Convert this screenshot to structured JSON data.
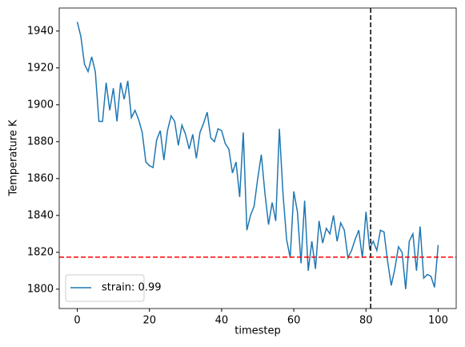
{
  "chart_data": {
    "type": "line",
    "xlabel": "timestep",
    "ylabel": "Temperature K",
    "x": [
      0,
      1,
      2,
      3,
      4,
      5,
      6,
      7,
      8,
      9,
      10,
      11,
      12,
      13,
      14,
      15,
      16,
      17,
      18,
      19,
      20,
      21,
      22,
      23,
      24,
      25,
      26,
      27,
      28,
      29,
      30,
      31,
      32,
      33,
      34,
      35,
      36,
      37,
      38,
      39,
      40,
      41,
      42,
      43,
      44,
      45,
      46,
      47,
      48,
      49,
      50,
      51,
      52,
      53,
      54,
      55,
      56,
      57,
      58,
      59,
      60,
      61,
      62,
      63,
      64,
      65,
      66,
      67,
      68,
      69,
      70,
      71,
      72,
      73,
      74,
      75,
      76,
      77,
      78,
      79,
      80,
      81,
      82,
      83,
      84,
      85,
      86,
      87,
      88,
      89,
      90,
      91,
      92,
      93,
      94,
      95,
      96,
      97,
      98,
      99,
      100
    ],
    "series": [
      {
        "name": "strain: 0.99",
        "color": "#1f77b4",
        "values": [
          1945,
          1937,
          1922,
          1918,
          1926,
          1918,
          1891,
          1891,
          1912,
          1897,
          1909,
          1891,
          1912,
          1903,
          1913,
          1893,
          1897,
          1892,
          1885,
          1869,
          1867,
          1866,
          1881,
          1886,
          1870,
          1886,
          1894,
          1891,
          1878,
          1889,
          1884,
          1876,
          1884,
          1871,
          1885,
          1890,
          1896,
          1882,
          1880,
          1887,
          1886,
          1879,
          1876,
          1863,
          1869,
          1850,
          1885,
          1832,
          1840,
          1845,
          1860,
          1873,
          1852,
          1835,
          1847,
          1837,
          1887,
          1852,
          1827,
          1817,
          1853,
          1842,
          1814,
          1848,
          1810,
          1826,
          1811,
          1837,
          1825,
          1833,
          1830,
          1840,
          1826,
          1836,
          1832,
          1817,
          1821,
          1827,
          1832,
          1817,
          1842,
          1822,
          1826,
          1821,
          1832,
          1831,
          1815,
          1802,
          1811,
          1823,
          1820,
          1800,
          1826,
          1830,
          1810,
          1834,
          1806,
          1808,
          1807,
          1801,
          1824
        ]
      }
    ],
    "reference_lines": [
      {
        "axis": "x",
        "value": 81.3,
        "color": "#000000"
      },
      {
        "axis": "y",
        "value": 1817.4,
        "color": "#ff0000"
      }
    ],
    "xlim": [
      -5,
      105
    ],
    "xticks": [
      0,
      20,
      40,
      60,
      80,
      100
    ],
    "ylim": [
      1789.5,
      1952.5
    ],
    "yticks": [
      1800,
      1820,
      1840,
      1860,
      1880,
      1900,
      1920,
      1940
    ],
    "legend": "lower left"
  }
}
